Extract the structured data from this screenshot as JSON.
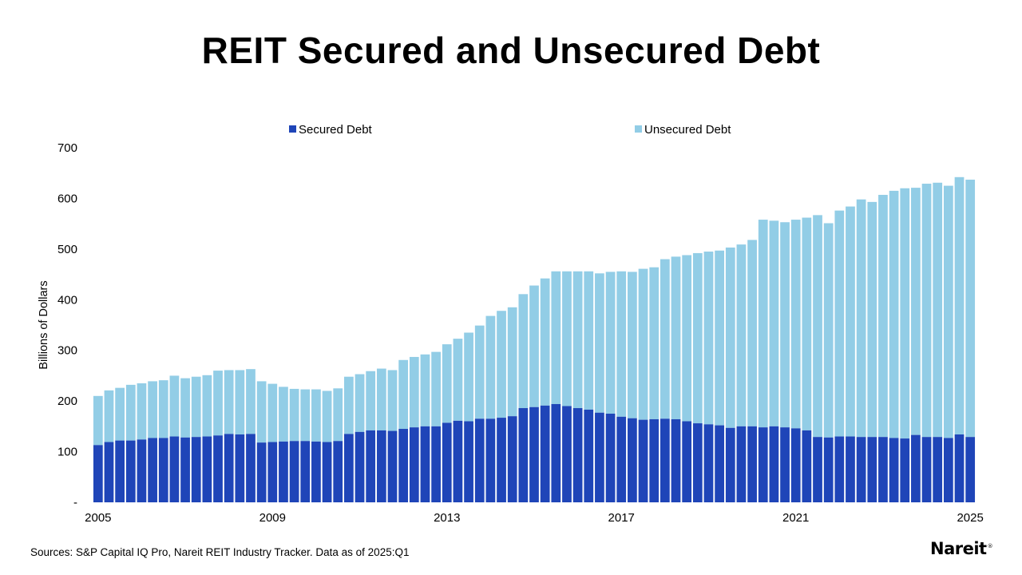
{
  "chart_data": {
    "type": "bar",
    "stacked": true,
    "title": "REIT Secured and Unsecured Debt",
    "xlabel": "",
    "ylabel": "Billions of Dollars",
    "ylim": [
      0,
      700
    ],
    "y_ticks": [
      {
        "value": 0,
        "label": "-"
      },
      {
        "value": 100,
        "label": "100"
      },
      {
        "value": 200,
        "label": "200"
      },
      {
        "value": 300,
        "label": "300"
      },
      {
        "value": 400,
        "label": "400"
      },
      {
        "value": 500,
        "label": "500"
      },
      {
        "value": 600,
        "label": "600"
      },
      {
        "value": 700,
        "label": "700"
      }
    ],
    "x_ticks": [
      {
        "index": 0,
        "label": "2005"
      },
      {
        "index": 16,
        "label": "2009"
      },
      {
        "index": 32,
        "label": "2013"
      },
      {
        "index": 48,
        "label": "2017"
      },
      {
        "index": 64,
        "label": "2021"
      },
      {
        "index": 80,
        "label": "2025"
      }
    ],
    "categories": [
      "2005Q1",
      "2005Q2",
      "2005Q3",
      "2005Q4",
      "2006Q1",
      "2006Q2",
      "2006Q3",
      "2006Q4",
      "2007Q1",
      "2007Q2",
      "2007Q3",
      "2007Q4",
      "2008Q1",
      "2008Q2",
      "2008Q3",
      "2008Q4",
      "2009Q1",
      "2009Q2",
      "2009Q3",
      "2009Q4",
      "2010Q1",
      "2010Q2",
      "2010Q3",
      "2010Q4",
      "2011Q1",
      "2011Q2",
      "2011Q3",
      "2011Q4",
      "2012Q1",
      "2012Q2",
      "2012Q3",
      "2012Q4",
      "2013Q1",
      "2013Q2",
      "2013Q3",
      "2013Q4",
      "2014Q1",
      "2014Q2",
      "2014Q3",
      "2014Q4",
      "2015Q1",
      "2015Q2",
      "2015Q3",
      "2015Q4",
      "2016Q1",
      "2016Q2",
      "2016Q3",
      "2016Q4",
      "2017Q1",
      "2017Q2",
      "2017Q3",
      "2017Q4",
      "2018Q1",
      "2018Q2",
      "2018Q3",
      "2018Q4",
      "2019Q1",
      "2019Q2",
      "2019Q3",
      "2019Q4",
      "2020Q1",
      "2020Q2",
      "2020Q3",
      "2020Q4",
      "2021Q1",
      "2021Q2",
      "2021Q3",
      "2021Q4",
      "2022Q1",
      "2022Q2",
      "2022Q3",
      "2022Q4",
      "2023Q1",
      "2023Q2",
      "2023Q3",
      "2023Q4",
      "2024Q1",
      "2024Q2",
      "2024Q3",
      "2024Q4",
      "2025Q1"
    ],
    "series": [
      {
        "name": "Secured Debt",
        "color": "#1f45b8",
        "values": [
          113,
          119,
          122,
          122,
          124,
          127,
          127,
          130,
          128,
          129,
          130,
          132,
          135,
          134,
          135,
          118,
          119,
          120,
          121,
          121,
          120,
          119,
          121,
          135,
          139,
          142,
          142,
          141,
          145,
          148,
          150,
          150,
          157,
          161,
          160,
          165,
          165,
          167,
          170,
          186,
          188,
          191,
          194,
          190,
          186,
          183,
          177,
          175,
          169,
          166,
          163,
          164,
          165,
          164,
          160,
          156,
          154,
          152,
          147,
          150,
          150,
          148,
          150,
          148,
          146,
          142,
          129,
          128,
          130,
          130,
          129,
          129,
          129,
          127,
          126,
          133,
          129,
          129,
          127,
          134,
          129
        ]
      },
      {
        "name": "Unsecured Debt",
        "color": "#92cde6",
        "values": [
          97,
          102,
          104,
          110,
          111,
          112,
          114,
          120,
          117,
          119,
          121,
          128,
          126,
          127,
          128,
          121,
          115,
          108,
          103,
          102,
          103,
          101,
          104,
          113,
          114,
          117,
          122,
          120,
          136,
          139,
          142,
          147,
          155,
          162,
          175,
          184,
          203,
          211,
          215,
          225,
          240,
          251,
          262,
          266,
          270,
          273,
          275,
          280,
          287,
          289,
          298,
          300,
          315,
          321,
          328,
          336,
          341,
          345,
          356,
          359,
          368,
          410,
          406,
          405,
          412,
          420,
          438,
          423,
          446,
          454,
          469,
          464,
          478,
          488,
          494,
          488,
          500,
          502,
          498,
          508,
          508
        ]
      }
    ]
  },
  "legend": {
    "items": [
      {
        "label": "Secured Debt",
        "color": "#1f45b8"
      },
      {
        "label": "Unsecured Debt",
        "color": "#92cde6"
      }
    ]
  },
  "footer": {
    "source": "Sources: S&P Capital IQ Pro, Nareit REIT Industry Tracker. Data as of 2025:Q1",
    "logo": "Nareit",
    "logo_mark": "®"
  }
}
